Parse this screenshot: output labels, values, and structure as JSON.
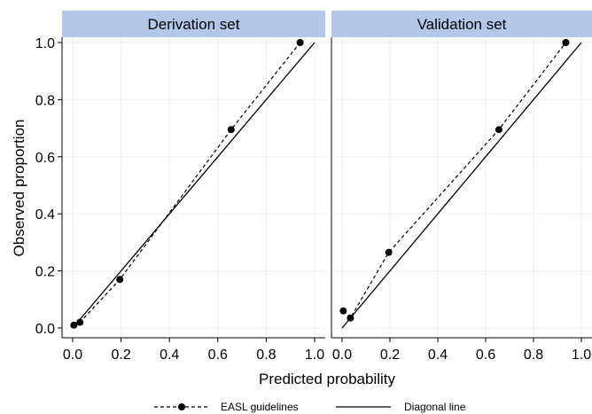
{
  "chart_data": {
    "type": "line",
    "xlabel": "Predicted probability",
    "ylabel": "Observed proportion",
    "xlim": [
      0,
      1
    ],
    "ylim": [
      0,
      1
    ],
    "x_ticks": [
      "0.0",
      "0.2",
      "0.4",
      "0.6",
      "0.8",
      "1.0"
    ],
    "y_ticks": [
      "0.0",
      "0.2",
      "0.4",
      "0.6",
      "0.8",
      "1.0"
    ],
    "grid": true,
    "legend": {
      "placement": "bottom",
      "entries": [
        {
          "name": "EASL guidelines",
          "style": "dashed-with-markers"
        },
        {
          "name": "Diagonal line",
          "style": "solid"
        }
      ]
    },
    "colors": {
      "series": "#000000",
      "panel_header": "#b3c7ea",
      "grid": "#eaf0f4"
    },
    "panels": [
      {
        "title": "Derivation set",
        "series": [
          {
            "name": "EASL guidelines",
            "x": [
              0.005,
              0.03,
              0.195,
              0.655,
              0.94
            ],
            "y": [
              0.01,
              0.02,
              0.17,
              0.695,
              1.0
            ]
          }
        ]
      },
      {
        "title": "Validation set",
        "series": [
          {
            "name": "EASL guidelines",
            "x": [
              0.005,
              0.035,
              0.195,
              0.655,
              0.935
            ],
            "y": [
              0.06,
              0.035,
              0.265,
              0.695,
              1.0
            ]
          }
        ]
      }
    ]
  }
}
